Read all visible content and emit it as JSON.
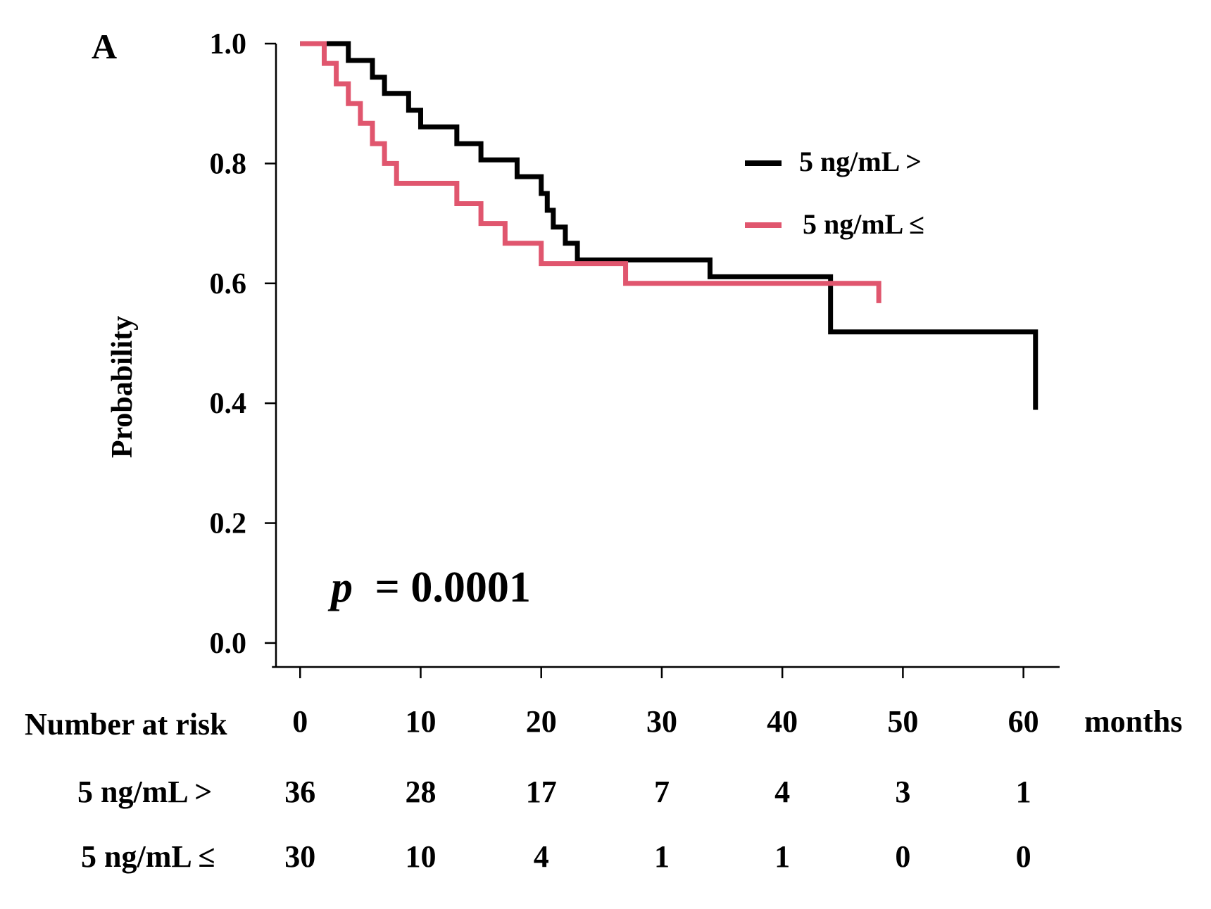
{
  "panel_label": "A",
  "colors": {
    "high": "#000000",
    "low": "#e0566e",
    "axis": "#000000"
  },
  "chart_data": {
    "type": "line",
    "subtype": "kaplan-meier step",
    "xlabel": "months",
    "ylabel": "Probability",
    "xlim": [
      -2,
      63
    ],
    "ylim": [
      -0.04,
      1.0
    ],
    "xticks": [
      0,
      10,
      20,
      30,
      40,
      50,
      60
    ],
    "yticks": [
      0.0,
      0.2,
      0.4,
      0.6,
      0.8,
      1.0
    ],
    "ytick_labels": [
      "0.0",
      "0.2",
      "0.4",
      "0.6",
      "0.8",
      "1.0"
    ],
    "annotation": {
      "italic": "p",
      "text": "= 0.0001"
    },
    "legend_position": "top-right",
    "series": [
      {
        "name": "5 ng/mL >",
        "color": "#000000",
        "steps": [
          [
            0,
            1.0
          ],
          [
            4,
            0.972
          ],
          [
            6,
            0.944
          ],
          [
            7,
            0.917
          ],
          [
            9,
            0.889
          ],
          [
            10,
            0.861
          ],
          [
            13,
            0.833
          ],
          [
            15,
            0.806
          ],
          [
            18,
            0.778
          ],
          [
            20,
            0.75
          ],
          [
            20.5,
            0.722
          ],
          [
            21,
            0.694
          ],
          [
            22,
            0.667
          ],
          [
            23,
            0.639
          ],
          [
            34,
            0.611
          ],
          [
            44,
            0.519
          ],
          [
            61,
            0.389
          ]
        ]
      },
      {
        "name": "5 ng/mL ≤",
        "color": "#e0566e",
        "steps": [
          [
            0,
            1.0
          ],
          [
            2,
            0.967
          ],
          [
            3,
            0.933
          ],
          [
            4,
            0.9
          ],
          [
            5,
            0.867
          ],
          [
            6,
            0.833
          ],
          [
            7,
            0.8
          ],
          [
            8,
            0.767
          ],
          [
            13,
            0.733
          ],
          [
            15,
            0.7
          ],
          [
            17,
            0.667
          ],
          [
            20,
            0.633
          ],
          [
            27,
            0.6
          ],
          [
            48,
            0.567
          ]
        ]
      }
    ],
    "risk_table": {
      "header": "Number at risk",
      "times": [
        0,
        10,
        20,
        30,
        40,
        50,
        60
      ],
      "rows": [
        {
          "label": "5 ng/mL >",
          "counts": [
            36,
            28,
            17,
            7,
            4,
            3,
            1
          ]
        },
        {
          "label": "5 ng/mL ≤",
          "counts": [
            30,
            10,
            4,
            1,
            1,
            0,
            0
          ]
        }
      ]
    }
  }
}
